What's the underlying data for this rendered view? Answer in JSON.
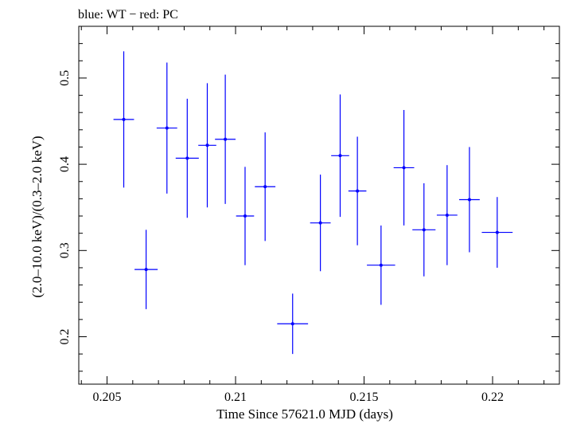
{
  "chart_data": {
    "type": "scatter",
    "title": "blue: WT − red: PC",
    "xlabel": "Time Since 57621.0 MJD (days)",
    "ylabel": "(2.0–10.0 keV)/(0.3–2.0 keV)",
    "xlim": [
      0.2039,
      0.2226
    ],
    "ylim": [
      0.145,
      0.56
    ],
    "xticks": [
      0.205,
      0.21,
      0.215,
      0.22
    ],
    "xtick_labels": [
      "0.205",
      "0.21",
      "0.215",
      "0.22"
    ],
    "yticks": [
      0.2,
      0.3,
      0.4,
      0.5
    ],
    "ytick_labels": [
      "0.2",
      "0.3",
      "0.4",
      "0.5"
    ],
    "grid": false,
    "series": [
      {
        "color": "#0000ff",
        "x": [
          0.20565,
          0.20652,
          0.20733,
          0.20812,
          0.2089,
          0.2096,
          0.21037,
          0.21115,
          0.21222,
          0.2133,
          0.21407,
          0.21474,
          0.21566,
          0.21655,
          0.21733,
          0.21823,
          0.2191,
          0.22018
        ],
        "xerr": [
          0.0004,
          0.00045,
          0.0004,
          0.00045,
          0.00035,
          0.0004,
          0.00035,
          0.0004,
          0.0006,
          0.0004,
          0.00035,
          0.00035,
          0.00055,
          0.0004,
          0.00045,
          0.0004,
          0.0004,
          0.0006
        ],
        "y": [
          0.452,
          0.278,
          0.442,
          0.407,
          0.422,
          0.429,
          0.34,
          0.374,
          0.215,
          0.332,
          0.41,
          0.369,
          0.283,
          0.396,
          0.324,
          0.341,
          0.359,
          0.321
        ],
        "yerr": [
          0.079,
          0.046,
          0.076,
          0.069,
          0.072,
          0.075,
          0.057,
          0.063,
          0.035,
          0.056,
          0.071,
          0.063,
          0.046,
          0.067,
          0.054,
          0.058,
          0.061,
          0.041
        ]
      }
    ]
  }
}
